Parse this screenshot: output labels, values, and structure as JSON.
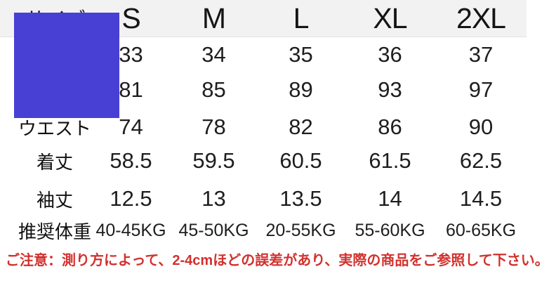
{
  "page": {
    "background": "#ffffff",
    "header_band_color": "#f2f2f3"
  },
  "overlay": {
    "name": "blue-censor-square",
    "color": "#4840d4"
  },
  "size_chart": {
    "header": {
      "label": "サイズ",
      "columns": [
        "S",
        "M",
        "L",
        "XL",
        "2XL"
      ]
    },
    "rows": [
      {
        "label": "",
        "values": [
          "33",
          "34",
          "35",
          "36",
          "37"
        ]
      },
      {
        "label": "",
        "values": [
          "81",
          "85",
          "89",
          "93",
          "97"
        ]
      },
      {
        "label": "ウエスト",
        "values": [
          "74",
          "78",
          "82",
          "86",
          "90"
        ]
      },
      {
        "label": "着丈",
        "values": [
          "58.5",
          "59.5",
          "60.5",
          "61.5",
          "62.5"
        ]
      },
      {
        "label": "袖丈",
        "values": [
          "12.5",
          "13",
          "13.5",
          "14",
          "14.5"
        ]
      },
      {
        "label": "推奨体重",
        "values": [
          "40-45KG",
          "45-50KG",
          "20-55KG",
          "55-60KG",
          "60-65KG"
        ]
      }
    ]
  },
  "note": {
    "text": "ご注意：測り方によって、2-4cmほどの誤差があり、実際の商品をご参照して下さい。",
    "color": "#d2312e"
  }
}
